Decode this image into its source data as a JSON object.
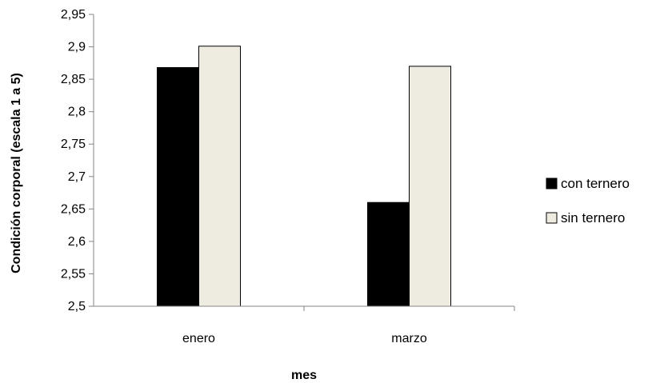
{
  "chart_data": {
    "type": "bar",
    "title": "",
    "xlabel": "mes",
    "ylabel": "Condición corporal (escala  1 a 5)",
    "categories": [
      "enero",
      "marzo"
    ],
    "series": [
      {
        "name": "con ternero",
        "values": [
          2.868,
          2.66
        ],
        "color": "#000000"
      },
      {
        "name": "sin ternero",
        "values": [
          2.901,
          2.87
        ],
        "color": "#EEECE1"
      }
    ],
    "ylim": [
      2.5,
      2.95
    ],
    "yticks": [
      "2,5",
      "2,55",
      "2,6",
      "2,65",
      "2,7",
      "2,75",
      "2,8",
      "2,85",
      "2,9",
      "2,95"
    ],
    "ytick_values": [
      2.5,
      2.55,
      2.6,
      2.65,
      2.7,
      2.75,
      2.8,
      2.85,
      2.9,
      2.95
    ],
    "grid": false,
    "legend_position": "right"
  }
}
